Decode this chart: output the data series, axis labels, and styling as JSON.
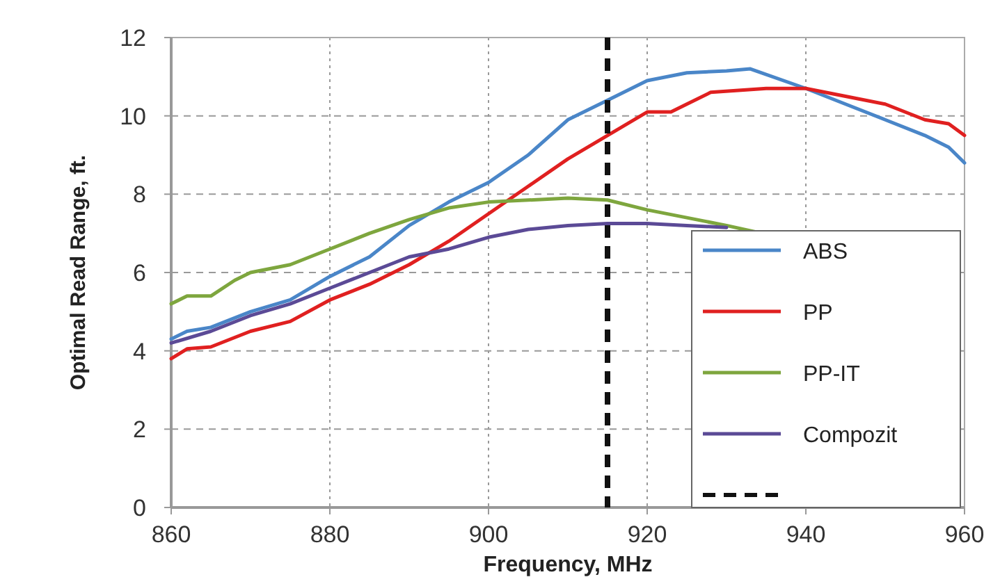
{
  "chart_data": {
    "type": "line",
    "xlabel": "Frequency, MHz",
    "ylabel": "Optimal Read Range, ft.",
    "xlim": [
      860,
      960
    ],
    "xticks": [
      860,
      880,
      900,
      920,
      940,
      960
    ],
    "ylim": [
      0,
      12
    ],
    "yticks": [
      0,
      2,
      4,
      6,
      8,
      10,
      12
    ],
    "grid": true,
    "legend": "bottom right",
    "line_style": "solid",
    "series": [
      {
        "name": "ABS",
        "color": "#4a86c8",
        "x": [
          860,
          862,
          865,
          870,
          875,
          880,
          885,
          890,
          895,
          900,
          905,
          910,
          915,
          920,
          925,
          930,
          933,
          940,
          945,
          950,
          955,
          958,
          960
        ],
        "values": [
          4.3,
          4.5,
          4.6,
          5.0,
          5.3,
          5.9,
          6.4,
          7.2,
          7.8,
          8.3,
          9.0,
          9.9,
          10.4,
          10.9,
          11.1,
          11.15,
          11.2,
          10.7,
          10.3,
          9.9,
          9.5,
          9.2,
          8.8
        ]
      },
      {
        "name": "PP",
        "color": "#e02020",
        "x": [
          860,
          862,
          865,
          870,
          875,
          880,
          885,
          890,
          895,
          900,
          905,
          910,
          915,
          920,
          923,
          925,
          928,
          935,
          940,
          945,
          950,
          955,
          958,
          960
        ],
        "values": [
          3.8,
          4.05,
          4.1,
          4.5,
          4.75,
          5.3,
          5.7,
          6.2,
          6.8,
          7.5,
          8.2,
          8.9,
          9.5,
          10.1,
          10.1,
          10.3,
          10.6,
          10.7,
          10.7,
          10.5,
          10.3,
          9.9,
          9.8,
          9.5
        ]
      },
      {
        "name": "PP-IT",
        "color": "#7ea63e",
        "x": [
          860,
          862,
          865,
          868,
          870,
          875,
          880,
          885,
          890,
          895,
          900,
          905,
          910,
          915,
          920,
          925,
          930,
          934
        ],
        "values": [
          5.2,
          5.4,
          5.4,
          5.8,
          6.0,
          6.2,
          6.6,
          7.0,
          7.35,
          7.65,
          7.8,
          7.85,
          7.9,
          7.85,
          7.6,
          7.4,
          7.2,
          7.02
        ]
      },
      {
        "name": "Compozit",
        "color": "#5b4a96",
        "x": [
          860,
          865,
          870,
          875,
          880,
          885,
          890,
          895,
          900,
          905,
          910,
          915,
          920,
          925,
          930
        ],
        "values": [
          4.2,
          4.5,
          4.9,
          5.2,
          5.6,
          6.0,
          6.4,
          6.6,
          6.9,
          7.1,
          7.2,
          7.25,
          7.25,
          7.2,
          7.15
        ]
      }
    ],
    "ref_lines": [
      {
        "axis": "x",
        "value": 915,
        "color": "#111111",
        "line_style": "dashed"
      }
    ]
  }
}
